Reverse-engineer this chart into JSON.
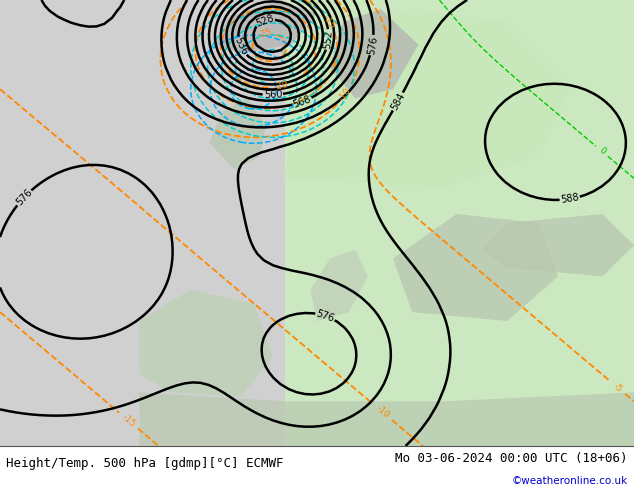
{
  "title_left": "Height/Temp. 500 hPa [gdmp][°C] ECMWF",
  "title_right": "Mo 03-06-2024 00:00 UTC (18+06)",
  "credit": "©weatheronline.co.uk",
  "bg_color": "#d8d8d8",
  "land_color_green": "#c8e8c0",
  "contour_color_z500": "#000000",
  "contour_color_temp_neg": "#ff8800",
  "contour_color_temp_pos": "#00cc00",
  "contour_color_low": "#00aaff",
  "contour_color_cyan": "#00cccc",
  "title_fontsize": 9,
  "credit_color": "#0000cc"
}
